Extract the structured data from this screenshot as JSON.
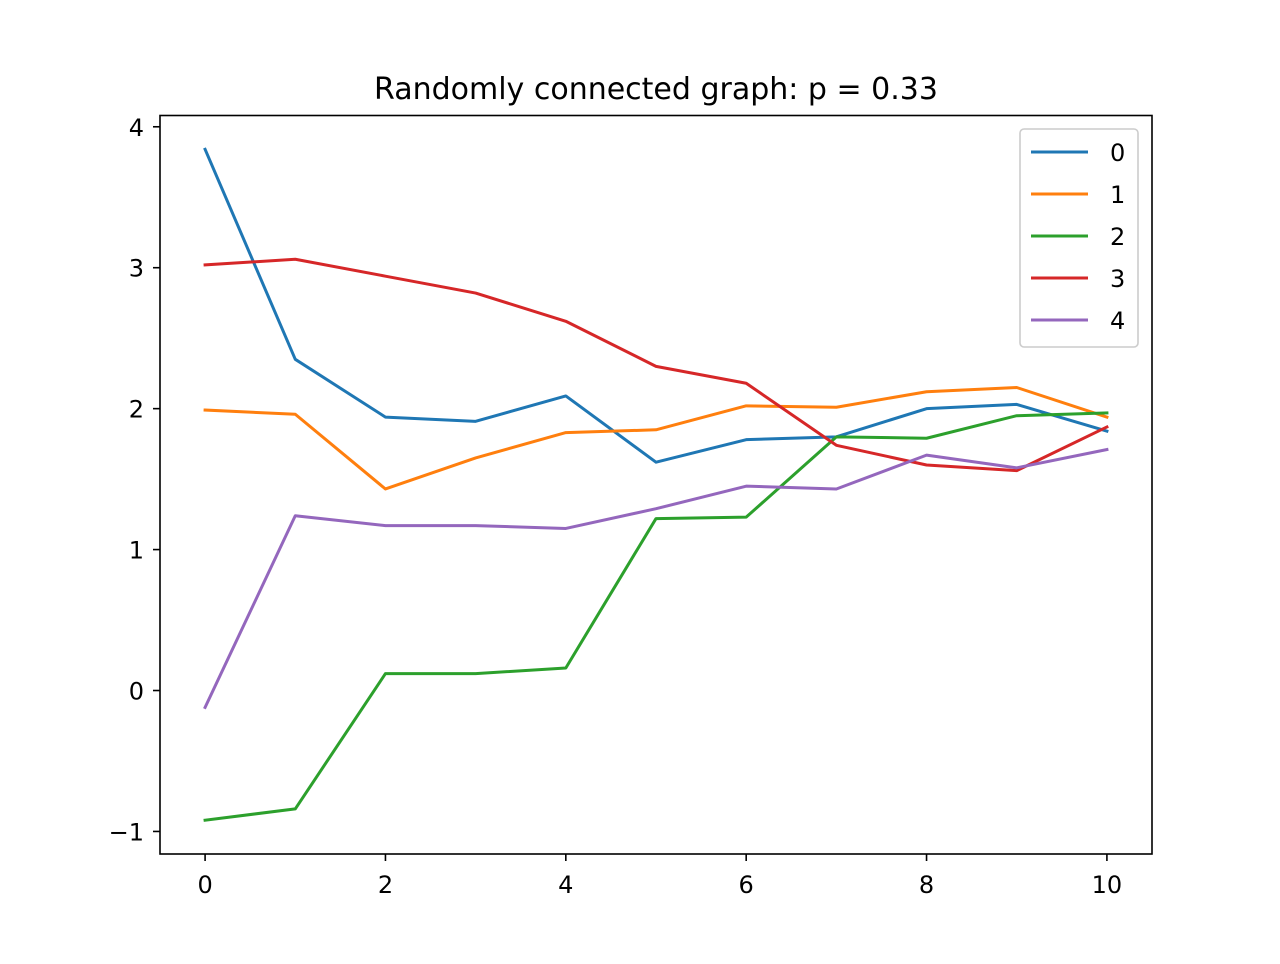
{
  "chart_data": {
    "type": "line",
    "title": "Randomly connected graph: p = 0.33",
    "xlabel": "",
    "ylabel": "",
    "x": [
      0,
      1,
      2,
      3,
      4,
      5,
      6,
      7,
      8,
      9,
      10
    ],
    "xlim": [
      -0.5,
      10.5
    ],
    "ylim": [
      -1.16,
      4.08
    ],
    "xticks": [
      0,
      2,
      4,
      6,
      8,
      10
    ],
    "yticks": [
      -1,
      0,
      1,
      2,
      3,
      4
    ],
    "xtick_labels": [
      "0",
      "2",
      "4",
      "6",
      "8",
      "10"
    ],
    "ytick_labels": [
      "−1",
      "0",
      "1",
      "2",
      "3",
      "4"
    ],
    "grid": false,
    "legend_position": "top-right",
    "series": [
      {
        "name": "0",
        "color": "#1f77b4",
        "values": [
          3.84,
          2.35,
          1.94,
          1.91,
          2.09,
          1.62,
          1.78,
          1.8,
          2.0,
          2.03,
          1.84
        ]
      },
      {
        "name": "1",
        "color": "#ff7f0e",
        "values": [
          1.99,
          1.96,
          1.43,
          1.65,
          1.83,
          1.85,
          2.02,
          2.01,
          2.12,
          2.15,
          1.94
        ]
      },
      {
        "name": "2",
        "color": "#2ca02c",
        "values": [
          -0.92,
          -0.84,
          0.12,
          0.12,
          0.16,
          1.22,
          1.23,
          1.8,
          1.79,
          1.95,
          1.97
        ]
      },
      {
        "name": "3",
        "color": "#d62728",
        "values": [
          3.02,
          3.06,
          2.94,
          2.82,
          2.62,
          2.3,
          2.18,
          1.74,
          1.6,
          1.56,
          1.87
        ]
      },
      {
        "name": "4",
        "color": "#9467bd",
        "values": [
          -0.12,
          1.24,
          1.17,
          1.17,
          1.15,
          1.29,
          1.45,
          1.43,
          1.67,
          1.58,
          1.71
        ]
      }
    ]
  }
}
